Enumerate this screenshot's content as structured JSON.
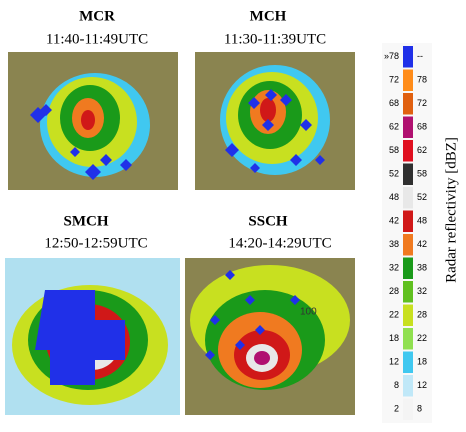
{
  "panels": [
    {
      "title": "MCR",
      "time": "11:40-11:49UTC"
    },
    {
      "title": "MCH",
      "time": "11:30-11:39UTC"
    },
    {
      "title": "SMCH",
      "time": "12:50-12:59UTC"
    },
    {
      "title": "SSCH",
      "time": "14:20-14:29UTC",
      "map_label": "100"
    }
  ],
  "colorbar": {
    "label": "Radar reflectivity [dBZ]",
    "levels": [
      {
        "from": "»78",
        "to": "--",
        "color": "#2030e8"
      },
      {
        "from": "72",
        "to": "78",
        "color": "#ff8c1a"
      },
      {
        "from": "68",
        "to": "72",
        "color": "#e06010"
      },
      {
        "from": "62",
        "to": "68",
        "color": "#b01070"
      },
      {
        "from": "58",
        "to": "62",
        "color": "#e01020"
      },
      {
        "from": "52",
        "to": "58",
        "color": "#303030"
      },
      {
        "from": "48",
        "to": "52",
        "color": "#e8e8e8"
      },
      {
        "from": "42",
        "to": "48",
        "color": "#d01818"
      },
      {
        "from": "38",
        "to": "42",
        "color": "#f07a20"
      },
      {
        "from": "32",
        "to": "38",
        "color": "#1a9a1a"
      },
      {
        "from": "28",
        "to": "32",
        "color": "#60c020"
      },
      {
        "from": "22",
        "to": "28",
        "color": "#c8e020"
      },
      {
        "from": "18",
        "to": "22",
        "color": "#90e050"
      },
      {
        "from": "12",
        "to": "18",
        "color": "#40c8f0"
      },
      {
        "from": "8",
        "to": "12",
        "color": "#c0e8f8"
      },
      {
        "from": "2",
        "to": "8",
        "color": "#f4f4f4"
      }
    ]
  }
}
